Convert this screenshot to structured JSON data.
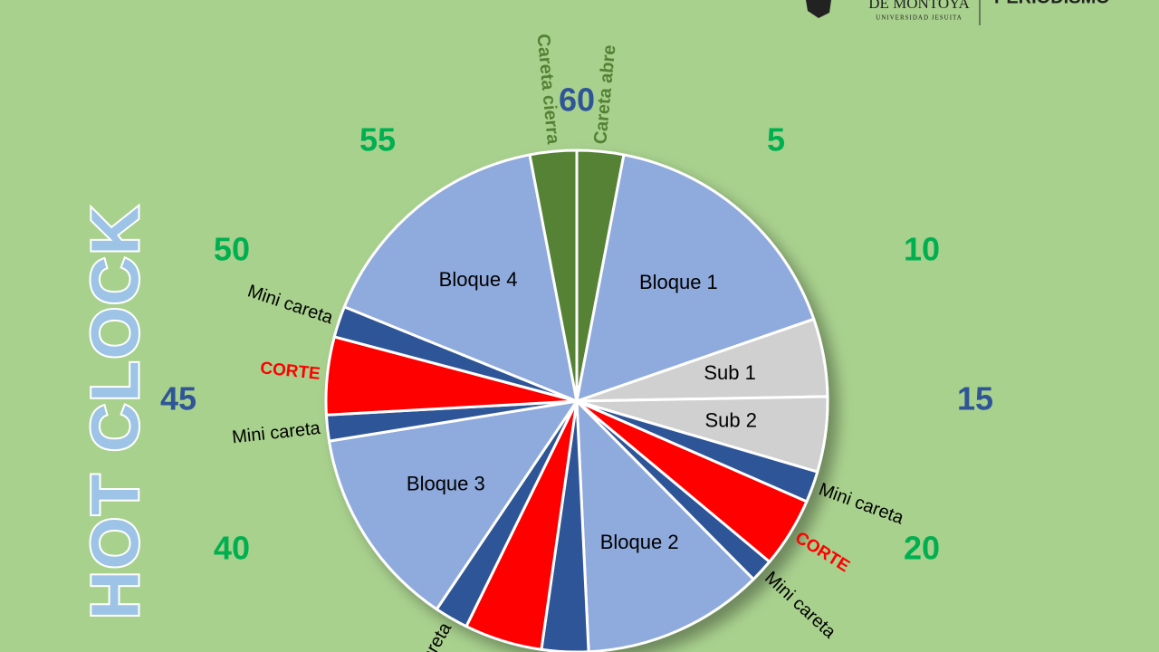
{
  "chart_data": {
    "type": "pie",
    "title": "HOT CLOCK",
    "categories": [
      "Careta abre",
      "Bloque 1",
      "Sub 1",
      "Sub 2",
      "Mini careta",
      "CORTE",
      "Mini careta",
      "Bloque 2",
      null,
      null,
      "careta",
      "Bloque 3",
      "Mini careta",
      "CORTE",
      "Mini careta",
      "Bloque 4",
      "Careta cierra"
    ],
    "values": [
      1.8,
      10,
      3,
      2.9,
      1.2,
      2.7,
      0.9,
      7,
      1.8,
      3,
      1.3,
      7.8,
      1,
      3,
      1.2,
      9.5,
      1.8
    ],
    "colors": [
      "#548235",
      "#8faadc",
      "#d0d0d0",
      "#d0d0d0",
      "#2f5597",
      "#ff0000",
      "#2f5597",
      "#8faadc",
      "#2f5597",
      "#ff0000",
      "#2f5597",
      "#8faadc",
      "#2f5597",
      "#ff0000",
      "#2f5597",
      "#8faadc",
      "#548235"
    ],
    "label_colors": [
      "#548235",
      "#000000",
      "#000000",
      "#000000",
      "#000000",
      "#ff0000",
      "#000000",
      "#000000",
      "#000000",
      "#ff0000",
      "#000000",
      "#000000",
      "#000000",
      "#ff0000",
      "#000000",
      "#000000",
      "#548235"
    ],
    "ticks": [
      5,
      10,
      15,
      20,
      40,
      45,
      50,
      55,
      60
    ],
    "tick_colors": [
      "#00b050",
      "#00b050",
      "#2f5597",
      "#00b050",
      "#00b050",
      "#2f5597",
      "#00b050",
      "#00b050",
      "#2f5597"
    ]
  },
  "header": {
    "university": "DE MONTOYA",
    "subtitle": "UNIVERSIDAD JESUITA",
    "program": "PERIODISMO"
  }
}
